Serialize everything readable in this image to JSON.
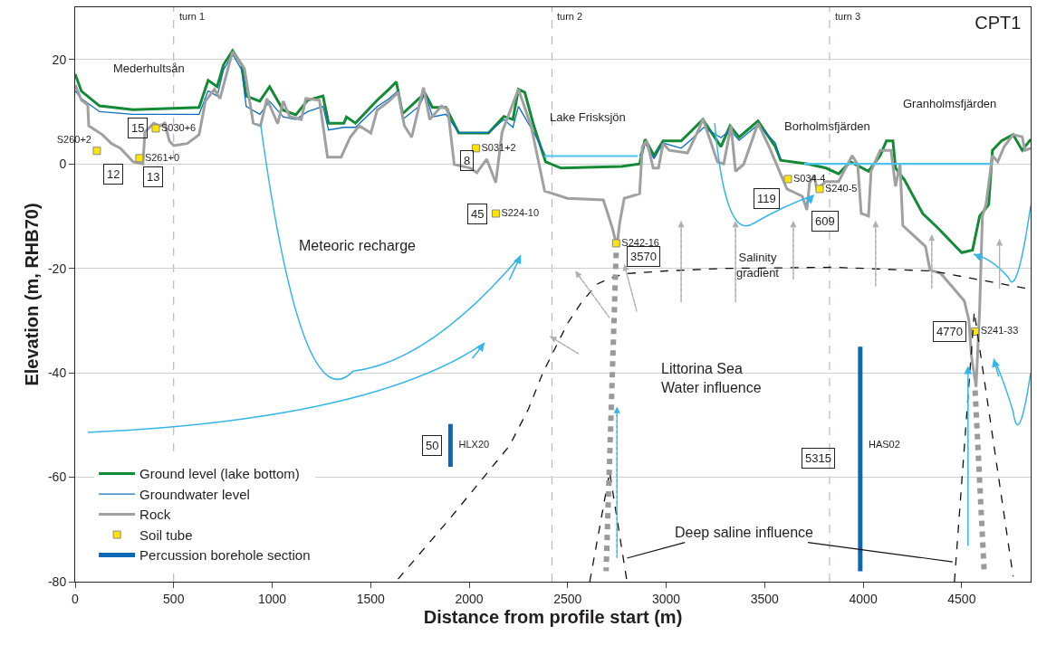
{
  "chart_data": {
    "type": "line",
    "title": "CPT1",
    "xlabel": "Distance from profile start (m)",
    "ylabel": "Elevation (m, RHB70)",
    "xlim": [
      0,
      4850
    ],
    "xticks": [
      0,
      500,
      1000,
      1500,
      2000,
      2500,
      3000,
      3500,
      4000,
      4500
    ],
    "ylim": [
      -80,
      30
    ],
    "yticks": [
      -80,
      -60,
      -40,
      -20,
      0,
      20
    ],
    "grid": "y",
    "legend": "bottom left",
    "series": [
      {
        "name": "Ground level (lake bottom)",
        "color": "#138a36",
        "x": [
          0,
          32,
          124,
          294,
          629,
          675,
          721,
          753,
          799,
          845,
          868,
          937,
          987,
          1056,
          1120,
          1180,
          1258,
          1286,
          1364,
          1377,
          1423,
          1533,
          1593,
          1630,
          1662,
          1745,
          1777,
          1814,
          1882,
          1947,
          2098,
          2176,
          2222,
          2250,
          2282,
          2328,
          2388,
          2466,
          2773,
          2865,
          2893,
          2938,
          2984,
          3076,
          3122,
          3186,
          3278,
          3324,
          3370,
          3466,
          3554,
          3581,
          3719,
          3811,
          3875,
          3935,
          4027,
          4086,
          4118,
          4151,
          4164,
          4210,
          4302,
          4380,
          4454,
          4500,
          4555,
          4591,
          4637,
          4656,
          4702,
          4761,
          4807,
          4850
        ],
        "values": [
          17.2,
          13.9,
          11.1,
          10.4,
          10.8,
          16,
          14.8,
          19,
          21.7,
          19,
          13,
          12,
          14.8,
          10.3,
          9.4,
          12.2,
          13,
          7.8,
          7.8,
          9,
          7.8,
          12.2,
          14.3,
          15.7,
          9.6,
          12.5,
          13.4,
          10.8,
          10.8,
          5.9,
          5.9,
          9.1,
          8.5,
          14.3,
          13.7,
          7.3,
          0.4,
          -0.8,
          -0.5,
          0,
          4.7,
          1.6,
          4.4,
          4.4,
          6.1,
          8.5,
          3.3,
          7.3,
          5.1,
          8.2,
          3.3,
          0.7,
          0,
          -0.8,
          -1.9,
          0.4,
          -1.4,
          1.6,
          4.4,
          4.4,
          -0.8,
          -3.1,
          -9.5,
          -12.3,
          -15.2,
          -17,
          -16.5,
          -10,
          -7.8,
          2.6,
          4.4,
          5.6,
          2.6,
          4.7
        ]
      },
      {
        "name": "Groundwater level",
        "color": "#0a6fc2",
        "x": [
          0,
          32,
          124,
          294,
          629,
          675,
          721,
          753,
          799,
          845,
          868,
          937,
          987,
          1056,
          1120,
          1180,
          1258,
          1286,
          1364,
          1423,
          1533,
          1593,
          1639,
          1662,
          1745,
          1777,
          1814,
          1882,
          1947,
          2098,
          2176,
          2222,
          2250,
          2328,
          2388,
          null,
          2865,
          2893,
          2938,
          2984,
          3076,
          3122,
          3191,
          3278,
          3324,
          3370,
          3466,
          3554,
          3581
        ],
        "values": [
          14,
          12.5,
          10,
          9.5,
          9.5,
          14,
          13,
          18,
          21,
          18,
          11,
          9.5,
          12,
          9,
          8.5,
          10,
          11,
          6.5,
          7,
          7,
          11,
          12.5,
          14,
          8.5,
          11,
          13.5,
          9,
          9.5,
          6,
          6,
          8.5,
          7,
          11,
          6,
          1.5,
          null,
          1.5,
          4,
          1,
          4,
          3,
          4.5,
          7,
          5,
          6.5,
          4.5,
          7.5,
          4,
          0.8
        ]
      },
      {
        "name": "Rock",
        "color": "#a0a0a0",
        "x": [
          0,
          32,
          64,
          69,
          138,
          184,
          230,
          294,
          344,
          354,
          399,
          432,
          455,
          478,
          500,
          569,
          629,
          661,
          707,
          735,
          799,
          859,
          904,
          941,
          973,
          1028,
          1056,
          1088,
          1148,
          1171,
          1240,
          1281,
          1350,
          1396,
          1442,
          1501,
          1533,
          1593,
          1639,
          1671,
          1708,
          1768,
          1800,
          1860,
          1892,
          1924,
          2006,
          2039,
          2089,
          2135,
          2167,
          2250,
          2314,
          2383,
          2498,
          2681,
          2727,
          2750,
          2764,
          2787,
          2865,
          2879,
          2902,
          2934,
          2961,
          2984,
          3016,
          3108,
          3168,
          3186,
          3260,
          3292,
          3329,
          3352,
          3393,
          3466,
          3522,
          3613,
          3691,
          3714,
          3728,
          3751,
          3765,
          3811,
          3875,
          3944,
          3972,
          3990,
          4027,
          4040,
          4086,
          4141,
          4164,
          4187,
          4201,
          4316,
          4339,
          4394,
          4513,
          4536,
          4550,
          4573,
          4591,
          4605,
          4623,
          4656,
          4683,
          4715,
          4761,
          4807,
          4821,
          4850
        ],
        "values": [
          15.1,
          12.2,
          11.3,
          7.3,
          5.6,
          3.9,
          3,
          0.4,
          0,
          6.1,
          7.8,
          7.3,
          7.8,
          4.4,
          3.5,
          3.9,
          5.6,
          12,
          14.3,
          12.5,
          21.5,
          18.3,
          7.8,
          7.3,
          12.5,
          7.7,
          12,
          9.1,
          8.5,
          12.5,
          12.2,
          1.3,
          1.3,
          5.1,
          7.3,
          5.9,
          10.3,
          12,
          13.7,
          7.3,
          5.1,
          14.6,
          8.5,
          11.1,
          10.4,
          -0.1,
          -0.8,
          -1.7,
          0.9,
          -3.6,
          6.1,
          14.3,
          7.3,
          -5.2,
          -6.6,
          -6.9,
          -12.3,
          -15.8,
          -11.3,
          -6.6,
          -5.7,
          3.3,
          4.4,
          -0.8,
          -0.8,
          3.9,
          2.6,
          2.1,
          6.8,
          8.7,
          0.4,
          0,
          7.3,
          -1.4,
          -0.1,
          7.8,
          3.3,
          -4.8,
          -6.2,
          -8.8,
          -3.6,
          -2.2,
          -4.8,
          -3.4,
          -3.4,
          1.6,
          -0.1,
          -9.5,
          -10,
          -1.4,
          2.6,
          2.6,
          -4.3,
          -0.1,
          -11.8,
          -15.8,
          -20.3,
          -21,
          -26.2,
          -29.8,
          -37,
          -42.7,
          -27.9,
          -10,
          -7.8,
          1.6,
          0.4,
          3.3,
          5.6,
          5.2,
          2.6,
          3
        ]
      },
      {
        "color": "#4ec3f0",
        "x": [
          2380,
          2855,
          2856,
          3700,
          4650
        ],
        "values": [
          1.5,
          1.5,
          null,
          0,
          0
        ]
      },
      {
        "name": "Soil tube",
        "color": "#ffe600",
        "type": "scatter",
        "marker": "square",
        "x": [
          110,
          326,
          409,
          2034,
          2135,
          2746,
          3618,
          3779,
          4568
        ],
        "values": [
          2.5,
          1.1,
          6.8,
          3,
          -9.5,
          -15.2,
          -2.9,
          -4.8,
          -32.1
        ],
        "value_labels": [
          "S260+2",
          "S261+0",
          "S030+6",
          "S031+2",
          "S224-10",
          "S242-16",
          "S034-4",
          "S240-5",
          "S241-33"
        ]
      },
      {
        "name": "Percussion borehole section",
        "color": "#0b68b5",
        "x": [
          1905,
          1905,
          1905,
          null,
          3985,
          3985,
          3985
        ],
        "values": [
          -49.8,
          -53.8,
          -58,
          null,
          -35,
          -53.8,
          -78
        ],
        "value_labels": [
          null,
          "HLX20",
          null,
          null,
          null,
          "HAS02",
          null
        ]
      },
      {
        "color": "#111111",
        "line_style": "dashed",
        "x": [
          1639,
          1900,
          2204,
          2300,
          2374,
          2440,
          2500,
          2570,
          2650,
          2720,
          2800,
          3000,
          3300,
          3850,
          4348,
          4850
        ],
        "values": [
          -79.5,
          -68,
          -54,
          -47,
          -40,
          -35,
          -30.5,
          -26.5,
          -23,
          -21.8,
          -21,
          -20.5,
          -20,
          -19.8,
          -20.5,
          -24
        ]
      },
      {
        "color": "#111111",
        "line_style": "dashed",
        "x": [
          2612,
          2713,
          2801,
          null,
          4463,
          4564,
          4761
        ],
        "values": [
          -80,
          -59,
          -80,
          null,
          -80,
          -28.3,
          -79
        ]
      },
      {
        "color": "#111111",
        "x": [
          3095,
          2801,
          null,
          3719,
          4454
        ],
        "values": [
          -72.5,
          -75.5,
          null,
          -72.5,
          -76.2
        ]
      }
    ],
    "ref_lines": [
      {
        "axis": "x",
        "value": 500,
        "label": "turn 1",
        "color": "#b89fd6",
        "line_style": "dashed"
      },
      {
        "axis": "x",
        "value": 2420,
        "label": "turn 2",
        "color": "#b89fd6",
        "line_style": "dashed"
      },
      {
        "axis": "x",
        "value": 3829,
        "label": "turn 3",
        "color": "#b89fd6",
        "line_style": "dashed"
      }
    ],
    "annotations": [
      {
        "text": "12",
        "x": 193,
        "y": -1.9
      },
      {
        "text": "13",
        "x": 395,
        "y": -2.4
      },
      {
        "text": "15",
        "x": 317,
        "y": 6.8
      },
      {
        "text": "8",
        "x": 1988,
        "y": 0.7
      },
      {
        "text": "45",
        "x": 2043,
        "y": -9.5
      },
      {
        "text": "3570",
        "x": 2883,
        "y": -17.7
      },
      {
        "text": "119",
        "x": 3512,
        "y": -6.6
      },
      {
        "text": "609",
        "x": 3806,
        "y": -10.9
      },
      {
        "text": "4770",
        "x": 4440,
        "y": -32.1
      },
      {
        "text": "5315",
        "x": 3770,
        "y": -56.4
      },
      {
        "text": "50",
        "x": 1809,
        "y": -54
      },
      "Mederhultsån",
      "Lake Frisksjön",
      "Borholmsfjärden",
      "Granholmsfjärden",
      "Meteoric recharge",
      "Salinity\ngradient",
      "Littorina Sea\nWater influence",
      "Deep saline influence"
    ]
  }
}
